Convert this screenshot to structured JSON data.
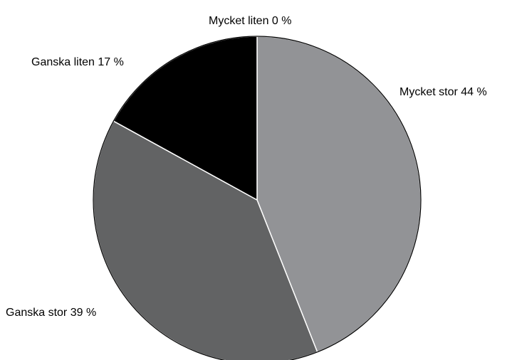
{
  "chart_data": {
    "type": "pie",
    "title": "",
    "start": "12 o'clock",
    "direction": "clockwise",
    "slices": [
      {
        "label": "Mycket stor",
        "value": 44,
        "display": "Mycket stor  44 %",
        "color": "#929396"
      },
      {
        "label": "Ganska stor",
        "value": 39,
        "display": "Ganska stor  39 %",
        "color": "#626364"
      },
      {
        "label": "Ganska liten",
        "value": 17,
        "display": "Ganska liten  17 %",
        "color": "#000000"
      },
      {
        "label": "Mycket liten",
        "value": 0,
        "display": "Mycket liten  0 %",
        "color": "#ffffff"
      }
    ],
    "legend": "none"
  }
}
